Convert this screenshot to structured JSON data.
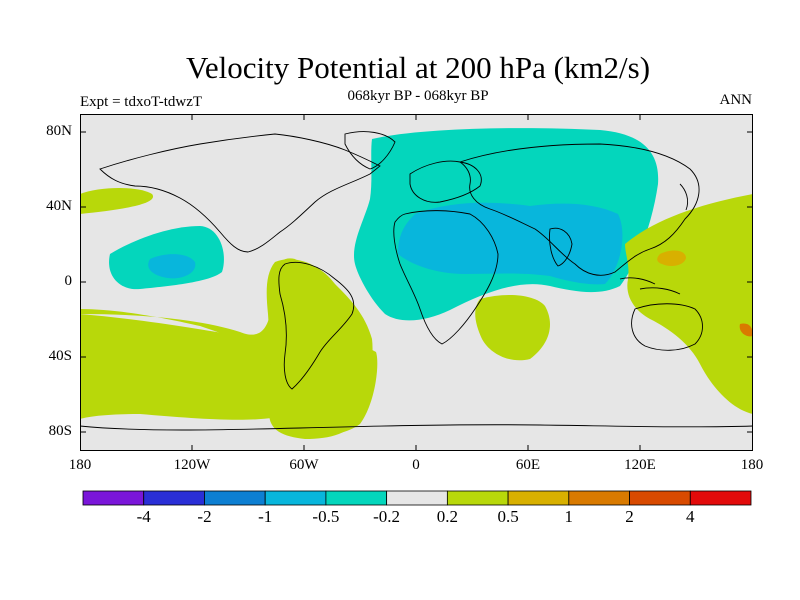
{
  "header": {
    "title": "Velocity Potential at 200 hPa (km2/s)",
    "subtitle": "068kyr BP - 068kyr BP",
    "left_label": "Expt = tdxoT-tdwzT",
    "right_label": "ANN"
  },
  "axes": {
    "lat_ticks": [
      "80N",
      "40N",
      "0",
      "40S",
      "80S"
    ],
    "lon_ticks": [
      "180",
      "120W",
      "60W",
      "0",
      "60E",
      "120E",
      "180"
    ]
  },
  "colorbar": {
    "labels": [
      "-4",
      "-2",
      "-1",
      "-0.5",
      "-0.2",
      "0.2",
      "0.5",
      "1",
      "2",
      "4"
    ],
    "colors": [
      "#7a16d9",
      "#2a2fd6",
      "#0d7fd2",
      "#08b6dc",
      "#04d6bc",
      "#e6e6e6",
      "#b8d80a",
      "#d8b000",
      "#d97a00",
      "#d84a00",
      "#e20a0a"
    ]
  },
  "colors": {
    "background": "#e6e6e6",
    "neg_02_05": "#04d6bc",
    "neg_05_1": "#08b6dc",
    "pos_02_05": "#b8d80a",
    "pos_05_1": "#d8b000",
    "pos_1_2": "#d97a00"
  }
}
